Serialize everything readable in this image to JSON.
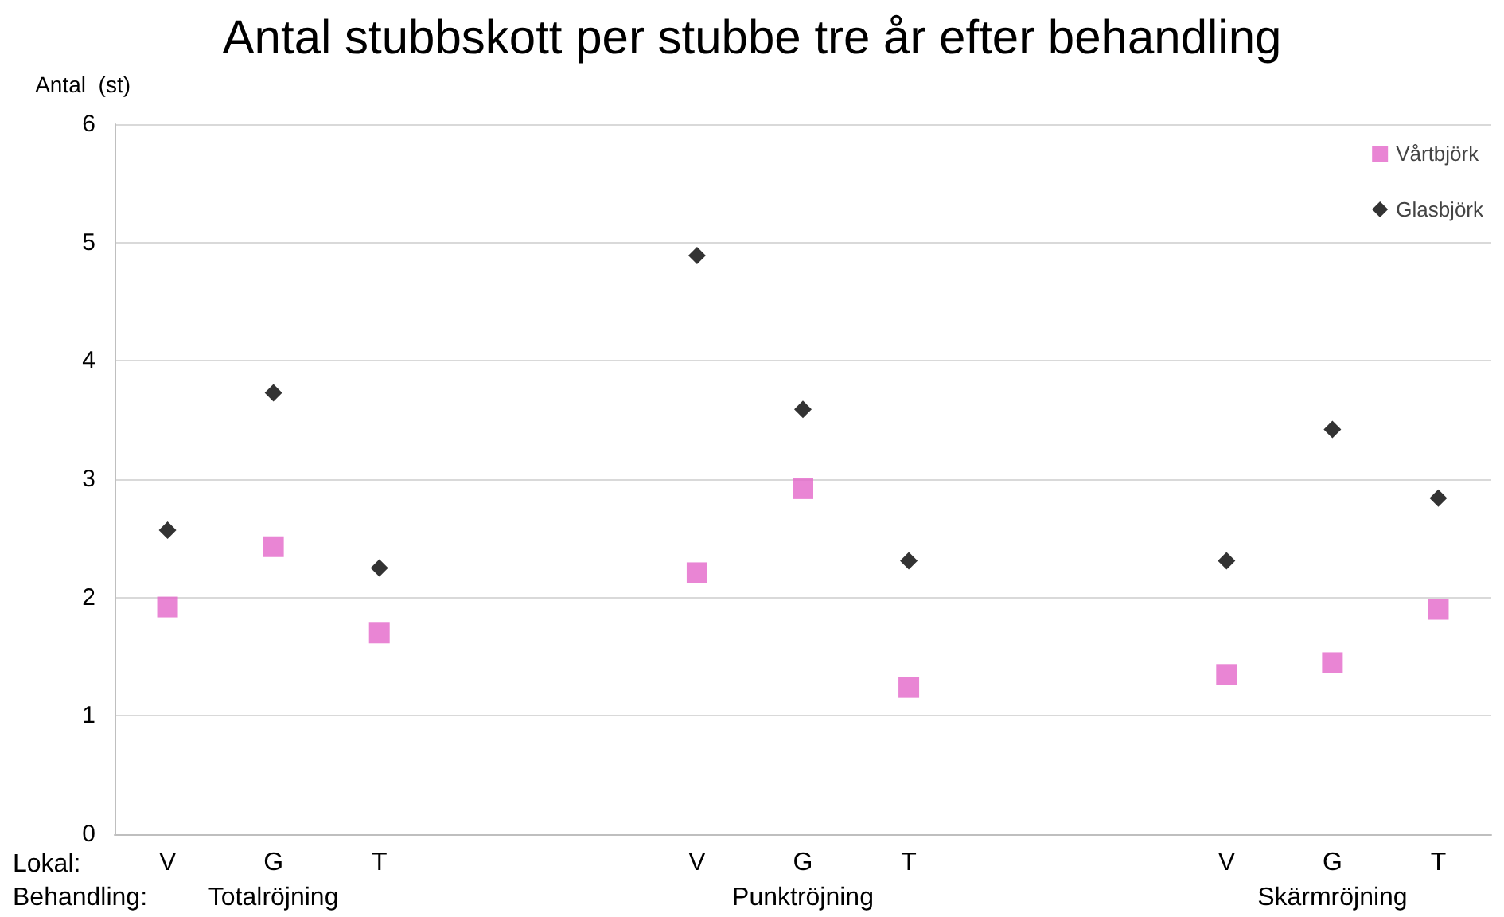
{
  "chart_data": {
    "type": "scatter",
    "title": "Antal stubbskott per stubbe tre år efter behandling",
    "ylabel": "Antal  (st)",
    "categories": [
      "V",
      "G",
      "T",
      null,
      null,
      "V",
      "G",
      "T",
      null,
      null,
      "V",
      "G",
      "T"
    ],
    "series": [
      {
        "name": "Vårtbjörk",
        "color": "#e366c9",
        "marker": "square",
        "values": [
          1.92,
          2.43,
          1.7,
          null,
          null,
          2.21,
          2.92,
          1.24,
          null,
          null,
          1.35,
          1.45,
          1.9
        ]
      },
      {
        "name": "Glasbjörk",
        "color": "#000000",
        "marker": "diamond",
        "values": [
          2.57,
          3.73,
          2.25,
          null,
          null,
          4.89,
          3.59,
          2.31,
          null,
          null,
          2.31,
          3.42,
          2.84
        ]
      }
    ],
    "ylim": [
      0,
      6
    ],
    "yticks": [
      0,
      1,
      2,
      3,
      4,
      5,
      6
    ],
    "grid": "y",
    "legend": "top right",
    "annotations": [
      "Lokal:",
      "Behandling:",
      "Totalröjning",
      "Punktröjning",
      "Skärmröjning"
    ]
  }
}
